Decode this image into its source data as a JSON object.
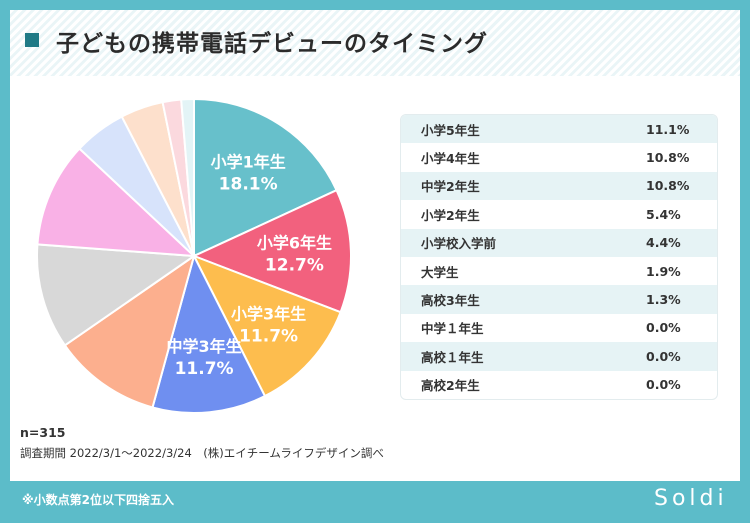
{
  "title": "子どもの携帯電話デビューのタイミング",
  "chart_data": {
    "type": "pie",
    "title": "子どもの携帯電話デビューのタイミング",
    "slices": [
      {
        "label": "小学1年生",
        "value": 18.1,
        "display": "18.1%",
        "color": "#67c0cb",
        "show_label": true
      },
      {
        "label": "小学6年生",
        "value": 12.7,
        "display": "12.7%",
        "color": "#f2617e",
        "show_label": true
      },
      {
        "label": "小学3年生",
        "value": 11.7,
        "display": "11.7%",
        "color": "#fdbd4e",
        "show_label": true
      },
      {
        "label": "中学3年生",
        "value": 11.7,
        "display": "11.7%",
        "color": "#6f8ff0",
        "show_label": true
      },
      {
        "label": "小学5年生",
        "value": 11.1,
        "display": "11.1%",
        "color": "#fcaf8e",
        "show_label": false
      },
      {
        "label": "小学4年生",
        "value": 10.8,
        "display": "10.8%",
        "color": "#d8d8d8",
        "show_label": false
      },
      {
        "label": "中学2年生",
        "value": 10.8,
        "display": "10.8%",
        "color": "#f9b1e6",
        "show_label": false
      },
      {
        "label": "小学2年生",
        "value": 5.4,
        "display": "5.4%",
        "color": "#d7e3fb",
        "show_label": false
      },
      {
        "label": "小学校入学前",
        "value": 4.4,
        "display": "4.4%",
        "color": "#fde0cc",
        "show_label": false
      },
      {
        "label": "大学生",
        "value": 1.9,
        "display": "1.9%",
        "color": "#fbd9de",
        "show_label": false
      },
      {
        "label": "高校3年生",
        "value": 1.3,
        "display": "1.3%",
        "color": "#e3f4f6",
        "show_label": false
      }
    ]
  },
  "table_rows": [
    {
      "label": "小学5年生",
      "value": "11.1%"
    },
    {
      "label": "小学4年生",
      "value": "10.8%"
    },
    {
      "label": "中学2年生",
      "value": "10.8%"
    },
    {
      "label": "小学2年生",
      "value": "5.4%"
    },
    {
      "label": "小学校入学前",
      "value": "4.4%"
    },
    {
      "label": "大学生",
      "value": "1.9%"
    },
    {
      "label": "高校3年生",
      "value": "1.3%"
    },
    {
      "label": "中学１年生",
      "value": "0.0%"
    },
    {
      "label": "高校１年生",
      "value": "0.0%"
    },
    {
      "label": "高校2年生",
      "value": "0.0%"
    }
  ],
  "sample_size": "n=315",
  "source": "調査期間 2022/3/1〜2022/3/24　(株)エイチームライフデザイン調べ",
  "footnote": "※小数点第2位以下四捨五入",
  "logo": "Soldi",
  "colors": {
    "accent": "#5cbcc9",
    "title_square": "#1f7a86",
    "stripe": "#eaf5f7"
  }
}
